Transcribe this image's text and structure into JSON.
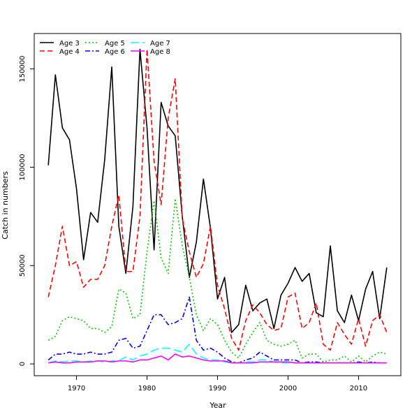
{
  "chart_data": {
    "type": "line",
    "title": "",
    "xlabel": "Year",
    "ylabel": "Catch in numbers",
    "xlim": [
      1964,
      2016
    ],
    "ylim": [
      -6000,
      168000
    ],
    "x_ticks": [
      1970,
      1980,
      1990,
      2000,
      2010
    ],
    "y_ticks": [
      0,
      50000,
      100000,
      150000
    ],
    "grid": false,
    "legend_position": "top-left",
    "x": [
      1966,
      1967,
      1968,
      1969,
      1970,
      1971,
      1972,
      1973,
      1974,
      1975,
      1976,
      1977,
      1978,
      1979,
      1980,
      1981,
      1982,
      1983,
      1984,
      1985,
      1986,
      1987,
      1988,
      1989,
      1990,
      1991,
      1992,
      1993,
      1994,
      1995,
      1996,
      1997,
      1998,
      1999,
      2000,
      2001,
      2002,
      2003,
      2004,
      2005,
      2006,
      2007,
      2008,
      2009,
      2010,
      2011,
      2012,
      2013,
      2014
    ],
    "series": [
      {
        "name": "Age 3",
        "color": "#000000",
        "dash": "solid",
        "values": [
          101000,
          147000,
          120000,
          114000,
          89000,
          53000,
          77000,
          72000,
          104000,
          151000,
          70000,
          46000,
          80000,
          160000,
          120000,
          58000,
          133000,
          121000,
          116000,
          75000,
          44000,
          62000,
          94000,
          69000,
          33000,
          44000,
          16000,
          20000,
          40000,
          27000,
          31000,
          33000,
          18000,
          35000,
          41000,
          49000,
          42000,
          46000,
          26000,
          24000,
          60000,
          27000,
          21000,
          35000,
          22000,
          38000,
          47000,
          23000,
          49000
        ]
      },
      {
        "name": "Age 4",
        "color": "#ff0000",
        "dash": "dashed",
        "values": [
          34000,
          50000,
          70000,
          50000,
          52000,
          39000,
          43000,
          43000,
          50000,
          70000,
          86000,
          47000,
          47000,
          75000,
          160000,
          103000,
          81000,
          125000,
          145000,
          74000,
          57000,
          44000,
          51000,
          70000,
          40000,
          28000,
          13000,
          7000,
          22000,
          30000,
          26000,
          20000,
          17000,
          18000,
          34000,
          36000,
          18000,
          21000,
          31000,
          10000,
          7000,
          21000,
          15000,
          10000,
          23000,
          9000,
          22000,
          25000,
          16000
        ]
      },
      {
        "name": "Age 5",
        "color": "#00cc00",
        "dash": "dotted",
        "values": [
          12000,
          14000,
          22000,
          24000,
          23000,
          22000,
          18000,
          18000,
          16000,
          19000,
          38000,
          36000,
          23000,
          25000,
          57000,
          83000,
          54000,
          46000,
          84000,
          60000,
          44000,
          25000,
          17000,
          23000,
          20000,
          12000,
          6000,
          3000,
          10000,
          16000,
          21000,
          12000,
          10000,
          9000,
          10000,
          12000,
          3000,
          5000,
          5000,
          1000,
          2000,
          2000,
          4000,
          1000,
          4000,
          1000,
          4000,
          6000,
          5000
        ]
      },
      {
        "name": "Age 6",
        "color": "#0000ff",
        "dash": "dashdot",
        "values": [
          2000,
          5000,
          5000,
          6000,
          5000,
          5000,
          6000,
          5000,
          5000,
          6000,
          12000,
          13000,
          8000,
          9000,
          17000,
          25000,
          25000,
          20000,
          21000,
          23000,
          34000,
          12000,
          7000,
          8000,
          6000,
          3000,
          1000,
          500,
          2000,
          3000,
          6000,
          4000,
          2000,
          2000,
          2000,
          2000,
          500,
          1000,
          1000,
          500,
          500,
          500,
          500,
          500,
          1000,
          500,
          1000,
          500,
          500
        ]
      },
      {
        "name": "Age 7",
        "color": "#00ffff",
        "dash": "longdash",
        "values": [
          500,
          1500,
          1000,
          1500,
          1500,
          1000,
          1500,
          1500,
          1000,
          1500,
          1500,
          3500,
          2000,
          4000,
          5000,
          7000,
          8000,
          8000,
          7000,
          6000,
          10000,
          5000,
          3000,
          2000,
          2000,
          1000,
          500,
          500,
          1000,
          1000,
          2000,
          2000,
          1000,
          500,
          500,
          500,
          500,
          500,
          500,
          500,
          500,
          500,
          500,
          500,
          500,
          500,
          500,
          500,
          500
        ]
      },
      {
        "name": "Age 8",
        "color": "#ff00ff",
        "dash": "solid",
        "values": [
          500,
          1000,
          500,
          500,
          1000,
          1000,
          1000,
          1500,
          1500,
          1000,
          1500,
          1500,
          1000,
          2000,
          2000,
          3000,
          4000,
          2000,
          5000,
          3500,
          4000,
          3000,
          2000,
          1500,
          1500,
          1500,
          500,
          500,
          500,
          500,
          1000,
          1000,
          1000,
          1000,
          1000,
          500,
          500,
          500,
          500,
          500,
          500,
          500,
          500,
          500,
          500,
          500,
          500,
          500,
          500
        ]
      }
    ]
  }
}
